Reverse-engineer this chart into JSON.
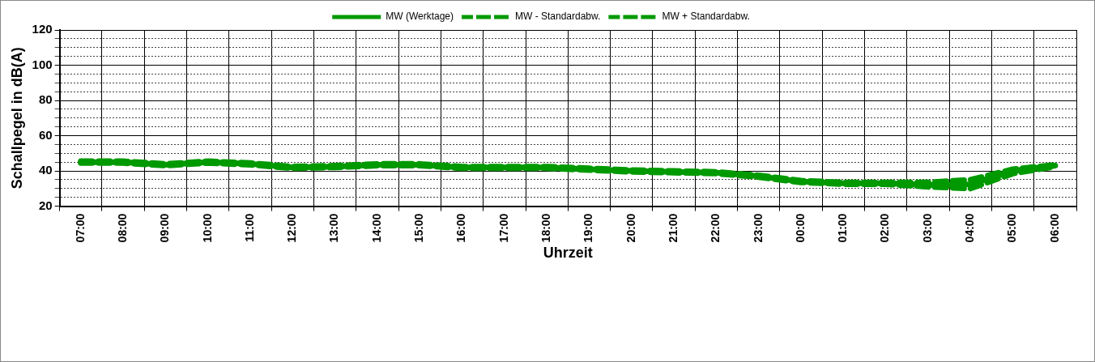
{
  "chart_data": {
    "type": "line",
    "xlabel": "Uhrzeit",
    "ylabel": "Schallpegel in dB(A)",
    "categories": [
      "07:00",
      "08:00",
      "09:00",
      "10:00",
      "11:00",
      "12:00",
      "13:00",
      "14:00",
      "15:00",
      "16:00",
      "17:00",
      "18:00",
      "19:00",
      "20:00",
      "21:00",
      "22:00",
      "23:00",
      "00:00",
      "01:00",
      "02:00",
      "03:00",
      "04:00",
      "05:00",
      "06:00"
    ],
    "series": [
      {
        "name": "MW (Werktage)",
        "color": "#009900",
        "line_style": "solid",
        "values": [
          45,
          45,
          43.5,
          45,
          44,
          42,
          42.5,
          43.5,
          43.5,
          42,
          42,
          42,
          41,
          40,
          39.5,
          39,
          37,
          34,
          33,
          33,
          32,
          32.5,
          40,
          43
        ]
      },
      {
        "name": "MW - Standardabw.",
        "color": "#009900",
        "line_style": "dashed",
        "values": [
          44.5,
          44.5,
          43,
          44.5,
          43.5,
          41.5,
          42,
          43,
          43,
          41.5,
          41.5,
          41.5,
          40.5,
          39.5,
          39,
          38.5,
          36.5,
          33.5,
          32.5,
          32.5,
          31,
          30,
          38.5,
          42.5
        ]
      },
      {
        "name": "MW + Standardabw.",
        "color": "#009900",
        "line_style": "dashed",
        "values": [
          45.5,
          45.5,
          44,
          45.5,
          44.5,
          42.5,
          43,
          44,
          44,
          42.5,
          42.5,
          42.5,
          41.5,
          40.5,
          40,
          39.5,
          37.5,
          34.5,
          33.5,
          33.5,
          33.5,
          35,
          41,
          43.5
        ]
      }
    ],
    "ylim": [
      20,
      120
    ],
    "yticks": [
      20,
      {
        "value": 25,
        "label": null
      },
      {
        "value": 30,
        "label": null
      },
      {
        "value": 35,
        "label": null
      },
      40,
      {
        "value": 45,
        "label": null
      },
      {
        "value": 50,
        "label": null
      },
      {
        "value": 55,
        "label": null
      },
      60,
      {
        "value": 65,
        "label": null
      },
      {
        "value": 70,
        "label": null
      },
      {
        "value": 75,
        "label": null
      },
      80,
      {
        "value": 85,
        "label": null
      },
      {
        "value": 90,
        "label": null
      },
      {
        "value": 95,
        "label": null
      },
      100,
      {
        "value": 105,
        "label": null
      },
      {
        "value": 110,
        "label": null
      },
      {
        "value": 115,
        "label": null
      },
      120
    ],
    "grid": true,
    "legend": "top",
    "marker": "none"
  }
}
